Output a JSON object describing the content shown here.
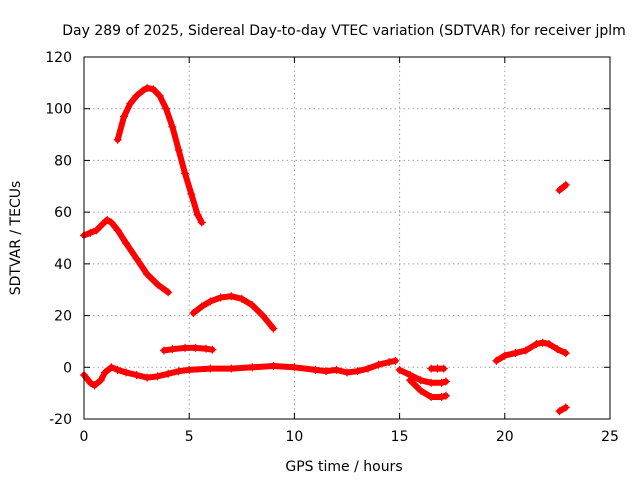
{
  "chart_data": {
    "type": "scatter",
    "title": "Day 289 of 2025, Sidereal Day-to-day VTEC variation (SDTVAR) for receiver jplm",
    "xlabel": "GPS time / hours",
    "ylabel": "SDTVAR / TECUs",
    "xlim": [
      0,
      25
    ],
    "ylim": [
      -20,
      120
    ],
    "xticks": [
      0,
      5,
      10,
      15,
      20,
      25
    ],
    "yticks": [
      -20,
      0,
      20,
      40,
      60,
      80,
      100,
      120
    ],
    "grid": true,
    "marker": "+",
    "color": "#ff0000",
    "series": [
      {
        "x": [
          1.6,
          1.9,
          2.2,
          2.5,
          2.8,
          3.0,
          3.3,
          3.6,
          3.9,
          4.2,
          4.5,
          4.8,
          5.1,
          5.4,
          5.6
        ],
        "y": [
          88,
          97,
          102,
          105,
          107,
          108,
          107.5,
          105,
          100,
          93,
          84,
          75,
          67,
          59,
          56
        ]
      },
      {
        "x": [
          0,
          0.3,
          0.6,
          0.9,
          1.1,
          1.3,
          1.6,
          2.0,
          2.5,
          3.0,
          3.5,
          4.0
        ],
        "y": [
          51,
          52,
          53,
          55.5,
          57,
          56,
          53,
          48,
          42,
          36,
          32,
          29
        ]
      },
      {
        "x": [
          5.2,
          5.6,
          6.0,
          6.5,
          7.0,
          7.5,
          8.0,
          8.5,
          9.0
        ],
        "y": [
          21,
          23.5,
          25.5,
          27,
          27.5,
          26.5,
          24,
          20,
          15
        ]
      },
      {
        "x": [
          3.8,
          4.2,
          4.8,
          5.3,
          5.8,
          6.1
        ],
        "y": [
          6.5,
          7.0,
          7.5,
          7.5,
          7.2,
          6.8
        ]
      },
      {
        "x": [
          0,
          0.3,
          0.5,
          0.8,
          1.0,
          1.3,
          1.6,
          2.0,
          2.5,
          3.0,
          3.5,
          4.0,
          4.5,
          5.0,
          6.0,
          7.0,
          8.0,
          9.0,
          10.0,
          11.0,
          11.5,
          12.0,
          12.5,
          13.0,
          13.5,
          14.0,
          14.5,
          14.8
        ],
        "y": [
          -3,
          -6,
          -7,
          -5,
          -2,
          0,
          -1,
          -2,
          -3,
          -4,
          -3.5,
          -2.5,
          -1.5,
          -1,
          -0.5,
          -0.5,
          0,
          0.5,
          0,
          -1,
          -1.5,
          -1,
          -2,
          -1.5,
          -0.5,
          1,
          2,
          2.5
        ]
      },
      {
        "x": [
          15.0,
          15.5,
          16.0,
          16.5,
          17.0,
          17.2
        ],
        "y": [
          -1,
          -3,
          -5,
          -6,
          -6,
          -5.5
        ]
      },
      {
        "x": [
          15.5,
          16.0,
          16.5,
          17.0,
          17.2
        ],
        "y": [
          -5,
          -9,
          -11.5,
          -11.5,
          -11
        ]
      },
      {
        "x": [
          16.5,
          16.8,
          17.1
        ],
        "y": [
          -0.5,
          -0.5,
          -0.5
        ]
      },
      {
        "x": [
          19.6,
          20.0,
          20.5,
          21.0,
          21.5,
          21.8,
          22.1,
          22.5,
          22.9
        ],
        "y": [
          2.5,
          4.5,
          5.5,
          6.5,
          9,
          9.5,
          9,
          7,
          5.5
        ]
      },
      {
        "x": [
          22.6,
          22.9
        ],
        "y": [
          68.5,
          70.5
        ]
      },
      {
        "x": [
          22.6,
          22.9
        ],
        "y": [
          -17,
          -15.5
        ]
      }
    ]
  }
}
